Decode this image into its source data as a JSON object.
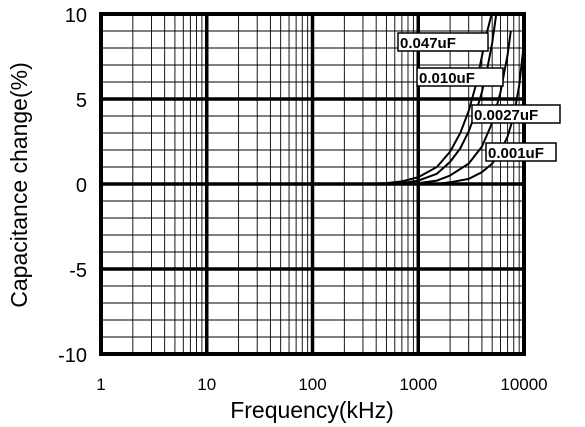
{
  "chart_data": {
    "type": "line",
    "xlabel": "Frequency(kHz)",
    "ylabel": "Capacitance change(%)",
    "x_scale": "log",
    "xlim": [
      1,
      10000
    ],
    "ylim": [
      -10,
      10
    ],
    "x_ticks": [
      "1",
      "10",
      "100",
      "1000",
      "10000"
    ],
    "y_ticks": [
      "10",
      "5",
      "0",
      "-5",
      "-10"
    ],
    "grid": true,
    "series": [
      {
        "name": "0.047uF",
        "x": [
          1,
          300,
          500,
          700,
          1000,
          1500,
          2000,
          2500,
          3000,
          3500,
          4000,
          4500,
          5000
        ],
        "y": [
          0,
          0,
          0.05,
          0.15,
          0.4,
          1.0,
          1.9,
          3.0,
          4.3,
          5.8,
          7.5,
          9.0,
          10.2
        ]
      },
      {
        "name": "0.010uF",
        "x": [
          1,
          400,
          700,
          1000,
          1500,
          2000,
          2500,
          3000,
          3500,
          4000,
          4500,
          5000,
          5500
        ],
        "y": [
          0,
          0,
          0.05,
          0.2,
          0.6,
          1.3,
          2.1,
          3.1,
          4.2,
          5.4,
          6.8,
          8.3,
          10.1
        ]
      },
      {
        "name": "0.0027uF",
        "x": [
          1,
          700,
          1000,
          1500,
          2000,
          3000,
          4000,
          5000,
          6000,
          7000,
          7500
        ],
        "y": [
          0,
          0,
          0.05,
          0.2,
          0.5,
          1.2,
          2.2,
          3.6,
          5.4,
          7.6,
          9.0
        ]
      },
      {
        "name": "0.001uF",
        "x": [
          1,
          1500,
          2000,
          3000,
          4000,
          5000,
          6000,
          7000,
          8000,
          9000,
          10000
        ],
        "y": [
          0,
          0,
          0.1,
          0.3,
          0.7,
          1.2,
          1.9,
          2.8,
          4.0,
          5.8,
          8.3
        ]
      }
    ]
  }
}
